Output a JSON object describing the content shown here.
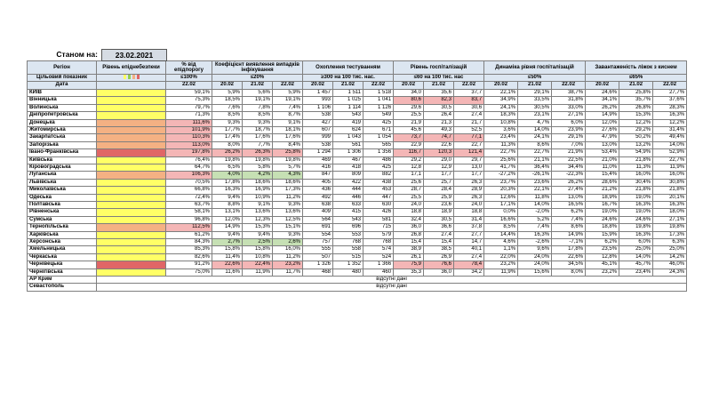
{
  "header": {
    "as_of_label": "Станом на:",
    "as_of_date": "23.02.2021"
  },
  "columns": {
    "region": "Регіон",
    "level": "Рівень епіднебезпеки",
    "pct_plan": "% від епідпорогу",
    "coef": "Коефіцієнт виявлення випадків інфікування",
    "testing": "Охоплення тестуванням",
    "hosp": "Рівень госпіталізацій",
    "dyn": "Динаміка рівня госпіталізацій",
    "oxygen": "Завантаженість ліжок з киснем"
  },
  "target_row": {
    "label": "Цільовий показник",
    "pct_plan": "≤100%",
    "coef": "≤20%",
    "testing": "≥300 на 100 тис. нас.",
    "hosp": "≤60 на 100 тис. нас",
    "dyn": "≤50%",
    "oxygen": "≤65%"
  },
  "target_colors": [
    "#ffff66",
    "#92d050",
    "#f4b183",
    "#e06666"
  ],
  "date_row": {
    "label": "Дата",
    "pct_plan": "22.02",
    "dates": [
      "20.02",
      "21.02",
      "22.02"
    ]
  },
  "rows": [
    {
      "name": "КИЇВ",
      "level": "#ffff66",
      "pct": "59,1%",
      "coef": [
        "5,9%",
        "5,6%",
        "5,9%"
      ],
      "test": [
        "1 457",
        "1 511",
        "1 518"
      ],
      "hosp": [
        "34,0",
        "35,6",
        "37,7"
      ],
      "dyn": [
        "22,1%",
        "29,1%",
        "38,7%"
      ],
      "oxy": [
        "24,6%",
        "25,8%",
        "27,7%"
      ],
      "hl": {}
    },
    {
      "name": "Вінницька",
      "level": "#ffff66",
      "pct": "75,3%",
      "coef": [
        "18,5%",
        "19,1%",
        "19,1%"
      ],
      "test": [
        "993",
        "1 025",
        "1 041"
      ],
      "hosp": [
        "80,6",
        "82,3",
        "83,7"
      ],
      "dyn": [
        "34,9%",
        "33,5%",
        "31,8%"
      ],
      "oxy": [
        "34,1%",
        "35,7%",
        "37,6%"
      ],
      "hl": {
        "hosp": "r"
      }
    },
    {
      "name": "Волинська",
      "level": "#ffff66",
      "pct": "79,7%",
      "coef": [
        "7,6%",
        "7,8%",
        "7,4%"
      ],
      "test": [
        "1 106",
        "1 114",
        "1 126"
      ],
      "hosp": [
        "29,6",
        "30,5",
        "30,6"
      ],
      "dyn": [
        "24,1%",
        "30,5%",
        "33,0%"
      ],
      "oxy": [
        "26,2%",
        "26,8%",
        "28,3%"
      ],
      "hl": {}
    },
    {
      "name": "Дніпропетровська",
      "level": "#ffff66",
      "pct": "71,3%",
      "coef": [
        "8,5%",
        "8,5%",
        "8,7%"
      ],
      "test": [
        "538",
        "543",
        "549"
      ],
      "hosp": [
        "25,5",
        "26,4",
        "27,4"
      ],
      "dyn": [
        "18,3%",
        "23,1%",
        "27,1%"
      ],
      "oxy": [
        "14,9%",
        "15,3%",
        "16,3%"
      ],
      "hl": {}
    },
    {
      "name": "Донецька",
      "level": "#f4b183",
      "pct": "111,6%",
      "coef": [
        "9,3%",
        "9,3%",
        "9,1%"
      ],
      "test": [
        "427",
        "419",
        "425"
      ],
      "hosp": [
        "21,9",
        "21,3",
        "21,7"
      ],
      "dyn": [
        "10,8%",
        "4,7%",
        "6,0%"
      ],
      "oxy": [
        "12,0%",
        "12,2%",
        "12,2%"
      ],
      "hl": {
        "pct": "r"
      }
    },
    {
      "name": "Житомирська",
      "level": "#f4b183",
      "pct": "101,9%",
      "coef": [
        "17,7%",
        "18,7%",
        "18,1%"
      ],
      "test": [
        "607",
        "624",
        "671"
      ],
      "hosp": [
        "45,6",
        "49,3",
        "52,5"
      ],
      "dyn": [
        "3,6%",
        "14,0%",
        "23,9%"
      ],
      "oxy": [
        "27,6%",
        "29,2%",
        "31,4%"
      ],
      "hl": {
        "pct": "r"
      }
    },
    {
      "name": "Закарпатська",
      "level": "#f4b183",
      "pct": "110,3%",
      "coef": [
        "17,4%",
        "17,6%",
        "17,6%"
      ],
      "test": [
        "999",
        "1 043",
        "1 054"
      ],
      "hosp": [
        "73,7",
        "74,7",
        "77,1"
      ],
      "dyn": [
        "23,4%",
        "24,1%",
        "29,1%"
      ],
      "oxy": [
        "47,9%",
        "50,2%",
        "49,4%"
      ],
      "hl": {
        "pct": "r",
        "hosp": "r"
      }
    },
    {
      "name": "Запорізька",
      "level": "#f4b183",
      "pct": "113,0%",
      "coef": [
        "8,0%",
        "7,7%",
        "8,4%"
      ],
      "test": [
        "538",
        "561",
        "565"
      ],
      "hosp": [
        "22,9",
        "22,6",
        "22,7"
      ],
      "dyn": [
        "11,3%",
        "8,6%",
        "7,0%"
      ],
      "oxy": [
        "13,0%",
        "13,2%",
        "14,0%"
      ],
      "hl": {
        "pct": "r"
      }
    },
    {
      "name": "Івано-Франківська",
      "level": "#e06666",
      "pct": "197,8%",
      "coef": [
        "26,2%",
        "26,3%",
        "25,8%"
      ],
      "test": [
        "1 294",
        "1 306",
        "1 356"
      ],
      "hosp": [
        "116,7",
        "120,3",
        "121,4"
      ],
      "dyn": [
        "22,7%",
        "22,7%",
        "21,9%"
      ],
      "oxy": [
        "53,4%",
        "54,9%",
        "52,9%"
      ],
      "hl": {
        "pct": "r",
        "coef": "r",
        "hosp": "r"
      }
    },
    {
      "name": "Київська",
      "level": "#ffff66",
      "pct": "76,4%",
      "coef": [
        "19,8%",
        "19,8%",
        "19,8%"
      ],
      "test": [
        "469",
        "467",
        "486"
      ],
      "hosp": [
        "29,2",
        "29,0",
        "29,7"
      ],
      "dyn": [
        "25,6%",
        "21,1%",
        "22,5%"
      ],
      "oxy": [
        "21,0%",
        "21,8%",
        "22,7%"
      ],
      "hl": {}
    },
    {
      "name": "Кіровоградська",
      "level": "#ffff66",
      "pct": "64,7%",
      "coef": [
        "6,5%",
        "5,8%",
        "5,7%"
      ],
      "test": [
        "416",
        "418",
        "425"
      ],
      "hosp": [
        "12,8",
        "12,9",
        "13,0"
      ],
      "dyn": [
        "41,7%",
        "36,4%",
        "34,4%"
      ],
      "oxy": [
        "11,0%",
        "11,3%",
        "11,9%"
      ],
      "hl": {}
    },
    {
      "name": "Луганська",
      "level": "#f4b183",
      "pct": "106,3%",
      "coef": [
        "4,0%",
        "4,2%",
        "4,3%"
      ],
      "test": [
        "847",
        "809",
        "882"
      ],
      "hosp": [
        "17,1",
        "17,7",
        "17,7"
      ],
      "dyn": [
        "-27,2%",
        "-26,1%",
        "-22,3%"
      ],
      "oxy": [
        "15,4%",
        "16,0%",
        "16,0%"
      ],
      "hl": {
        "pct": "r",
        "coef": "g"
      }
    },
    {
      "name": "Львівська",
      "level": "#ffff66",
      "pct": "70,5%",
      "coef": [
        "17,8%",
        "18,6%",
        "18,6%"
      ],
      "test": [
        "405",
        "422",
        "438"
      ],
      "hosp": [
        "25,6",
        "25,7",
        "26,3"
      ],
      "dyn": [
        "23,7%",
        "23,6%",
        "26,2%"
      ],
      "oxy": [
        "28,6%",
        "30,4%",
        "30,8%"
      ],
      "hl": {}
    },
    {
      "name": "Миколаївська",
      "level": "#ffff66",
      "pct": "66,8%",
      "coef": [
        "16,3%",
        "16,9%",
        "17,3%"
      ],
      "test": [
        "436",
        "444",
        "453"
      ],
      "hosp": [
        "28,7",
        "28,4",
        "28,9"
      ],
      "dyn": [
        "20,3%",
        "22,1%",
        "27,4%"
      ],
      "oxy": [
        "21,2%",
        "21,8%",
        "21,8%"
      ],
      "hl": {}
    },
    {
      "name": "Одеська",
      "level": "#ffff66",
      "pct": "72,4%",
      "coef": [
        "9,4%",
        "10,9%",
        "11,2%"
      ],
      "test": [
        "492",
        "446",
        "447"
      ],
      "hosp": [
        "25,5",
        "25,9",
        "26,3"
      ],
      "dyn": [
        "12,6%",
        "11,8%",
        "13,0%"
      ],
      "oxy": [
        "18,9%",
        "19,0%",
        "20,1%"
      ],
      "hl": {}
    },
    {
      "name": "Полтавська",
      "level": "#ffff66",
      "pct": "63,7%",
      "coef": [
        "8,8%",
        "9,1%",
        "9,3%"
      ],
      "test": [
        "638",
        "633",
        "630"
      ],
      "hosp": [
        "24,0",
        "23,6",
        "24,0"
      ],
      "dyn": [
        "17,1%",
        "14,0%",
        "16,5%"
      ],
      "oxy": [
        "16,7%",
        "16,3%",
        "16,3%"
      ],
      "hl": {}
    },
    {
      "name": "Рівненська",
      "level": "#ffff66",
      "pct": "58,1%",
      "coef": [
        "13,1%",
        "13,6%",
        "13,6%"
      ],
      "test": [
        "409",
        "415",
        "426"
      ],
      "hosp": [
        "18,8",
        "18,9",
        "18,8"
      ],
      "dyn": [
        "0,0%",
        "-2,0%",
        "6,2%"
      ],
      "oxy": [
        "19,0%",
        "19,0%",
        "18,0%"
      ],
      "hl": {}
    },
    {
      "name": "Сумська",
      "level": "#ffff66",
      "pct": "96,8%",
      "coef": [
        "12,0%",
        "12,3%",
        "12,5%"
      ],
      "test": [
        "564",
        "543",
        "581"
      ],
      "hosp": [
        "32,4",
        "30,5",
        "31,4"
      ],
      "dyn": [
        "16,6%",
        "5,2%",
        "7,4%"
      ],
      "oxy": [
        "24,6%",
        "24,6%",
        "27,1%"
      ],
      "hl": {}
    },
    {
      "name": "Тернопільська",
      "level": "#f4b183",
      "pct": "112,5%",
      "coef": [
        "14,9%",
        "15,3%",
        "15,1%"
      ],
      "test": [
        "691",
        "696",
        "715"
      ],
      "hosp": [
        "36,0",
        "36,6",
        "37,8"
      ],
      "dyn": [
        "8,5%",
        "7,4%",
        "8,6%"
      ],
      "oxy": [
        "18,8%",
        "19,8%",
        "19,8%"
      ],
      "hl": {
        "pct": "r"
      }
    },
    {
      "name": "Харківська",
      "level": "#ffff66",
      "pct": "61,2%",
      "coef": [
        "9,4%",
        "9,4%",
        "9,3%"
      ],
      "test": [
        "554",
        "553",
        "579"
      ],
      "hosp": [
        "26,8",
        "27,4",
        "27,7"
      ],
      "dyn": [
        "14,4%",
        "16,3%",
        "14,9%"
      ],
      "oxy": [
        "15,9%",
        "16,3%",
        "17,3%"
      ],
      "hl": {}
    },
    {
      "name": "Херсонська",
      "level": "#ffff66",
      "pct": "84,3%",
      "coef": [
        "2,7%",
        "2,5%",
        "2,6%"
      ],
      "test": [
        "757",
        "768",
        "768"
      ],
      "hosp": [
        "15,4",
        "15,4",
        "14,7"
      ],
      "dyn": [
        "4,6%",
        "-2,6%",
        "-7,1%"
      ],
      "oxy": [
        "6,2%",
        "6,0%",
        "6,3%"
      ],
      "hl": {
        "coef": "g"
      }
    },
    {
      "name": "Хмельницька",
      "level": "#ffff66",
      "pct": "85,3%",
      "coef": [
        "15,8%",
        "15,8%",
        "16,0%"
      ],
      "test": [
        "555",
        "558",
        "574"
      ],
      "hosp": [
        "38,9",
        "38,5",
        "40,1"
      ],
      "dyn": [
        "1,1%",
        "9,6%",
        "17,8%"
      ],
      "oxy": [
        "23,5%",
        "25,0%",
        "25,0%"
      ],
      "hl": {}
    },
    {
      "name": "Черкаська",
      "level": "#ffff66",
      "pct": "82,6%",
      "coef": [
        "11,4%",
        "10,8%",
        "11,2%"
      ],
      "test": [
        "507",
        "515",
        "524"
      ],
      "hosp": [
        "26,1",
        "26,9",
        "27,4"
      ],
      "dyn": [
        "22,0%",
        "24,0%",
        "22,6%"
      ],
      "oxy": [
        "12,8%",
        "14,0%",
        "14,2%"
      ],
      "hl": {}
    },
    {
      "name": "Чернівецька",
      "level": "#e06666",
      "pct": "91,2%",
      "coef": [
        "22,6%",
        "22,4%",
        "23,2%"
      ],
      "test": [
        "1 326",
        "1 352",
        "1 366"
      ],
      "hosp": [
        "75,9",
        "76,6",
        "78,4"
      ],
      "dyn": [
        "23,2%",
        "24,0%",
        "34,5%"
      ],
      "oxy": [
        "45,1%",
        "45,7%",
        "46,0%"
      ],
      "hl": {
        "coef": "r",
        "hosp": "r"
      }
    },
    {
      "name": "Чернігівська",
      "level": "#ffff66",
      "pct": "75,0%",
      "coef": [
        "11,6%",
        "11,9%",
        "11,7%"
      ],
      "test": [
        "468",
        "480",
        "460"
      ],
      "hosp": [
        "35,3",
        "36,0",
        "34,2"
      ],
      "dyn": [
        "11,9%",
        "15,6%",
        "8,0%"
      ],
      "oxy": [
        "23,2%",
        "23,4%",
        "24,3%"
      ],
      "hl": {}
    }
  ],
  "no_data_rows": [
    {
      "name": "АР Крим",
      "text": "відсутні дані"
    },
    {
      "name": "Севастополь",
      "text": "відсутні дані"
    }
  ]
}
